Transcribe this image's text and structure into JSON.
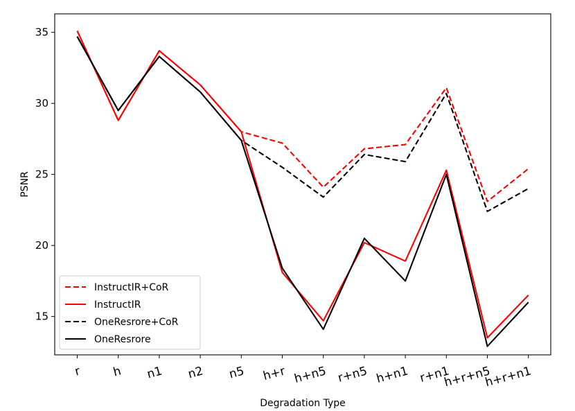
{
  "chart_data": {
    "type": "line",
    "categories": [
      "r",
      "h",
      "n1",
      "n2",
      "n5",
      "h+r",
      "h+n5",
      "r+n5",
      "h+n1",
      "r+n1",
      "h+r+n5",
      "h+r+n1"
    ],
    "xlabel": "Degradation Type",
    "ylabel": "PSNR",
    "ylim": [
      12.3,
      36.3
    ],
    "yticks": [
      15,
      20,
      25,
      30,
      35
    ],
    "grid": false,
    "legend_position": "lower-left",
    "series": [
      {
        "name": "InstructIR+CoR",
        "color": "#ff0000",
        "dash": "dashed",
        "values": [
          35.1,
          28.8,
          33.7,
          31.3,
          28.0,
          27.2,
          24.1,
          26.8,
          27.1,
          31.1,
          23.1,
          25.4
        ]
      },
      {
        "name": "InstructIR",
        "color": "#ff0000",
        "dash": "solid",
        "values": [
          35.1,
          28.8,
          33.7,
          31.3,
          28.0,
          18.1,
          14.7,
          20.2,
          18.9,
          25.3,
          13.5,
          16.5
        ]
      },
      {
        "name": "OneResrore+CoR",
        "color": "#000000",
        "dash": "dashed",
        "values": [
          34.7,
          29.5,
          33.3,
          30.8,
          27.4,
          25.5,
          23.4,
          26.4,
          25.9,
          30.7,
          22.4,
          24.0
        ]
      },
      {
        "name": "OneResrore",
        "color": "#000000",
        "dash": "solid",
        "values": [
          34.7,
          29.5,
          33.3,
          30.8,
          27.4,
          18.4,
          14.1,
          20.5,
          17.5,
          25.0,
          12.9,
          16.0
        ]
      }
    ]
  }
}
